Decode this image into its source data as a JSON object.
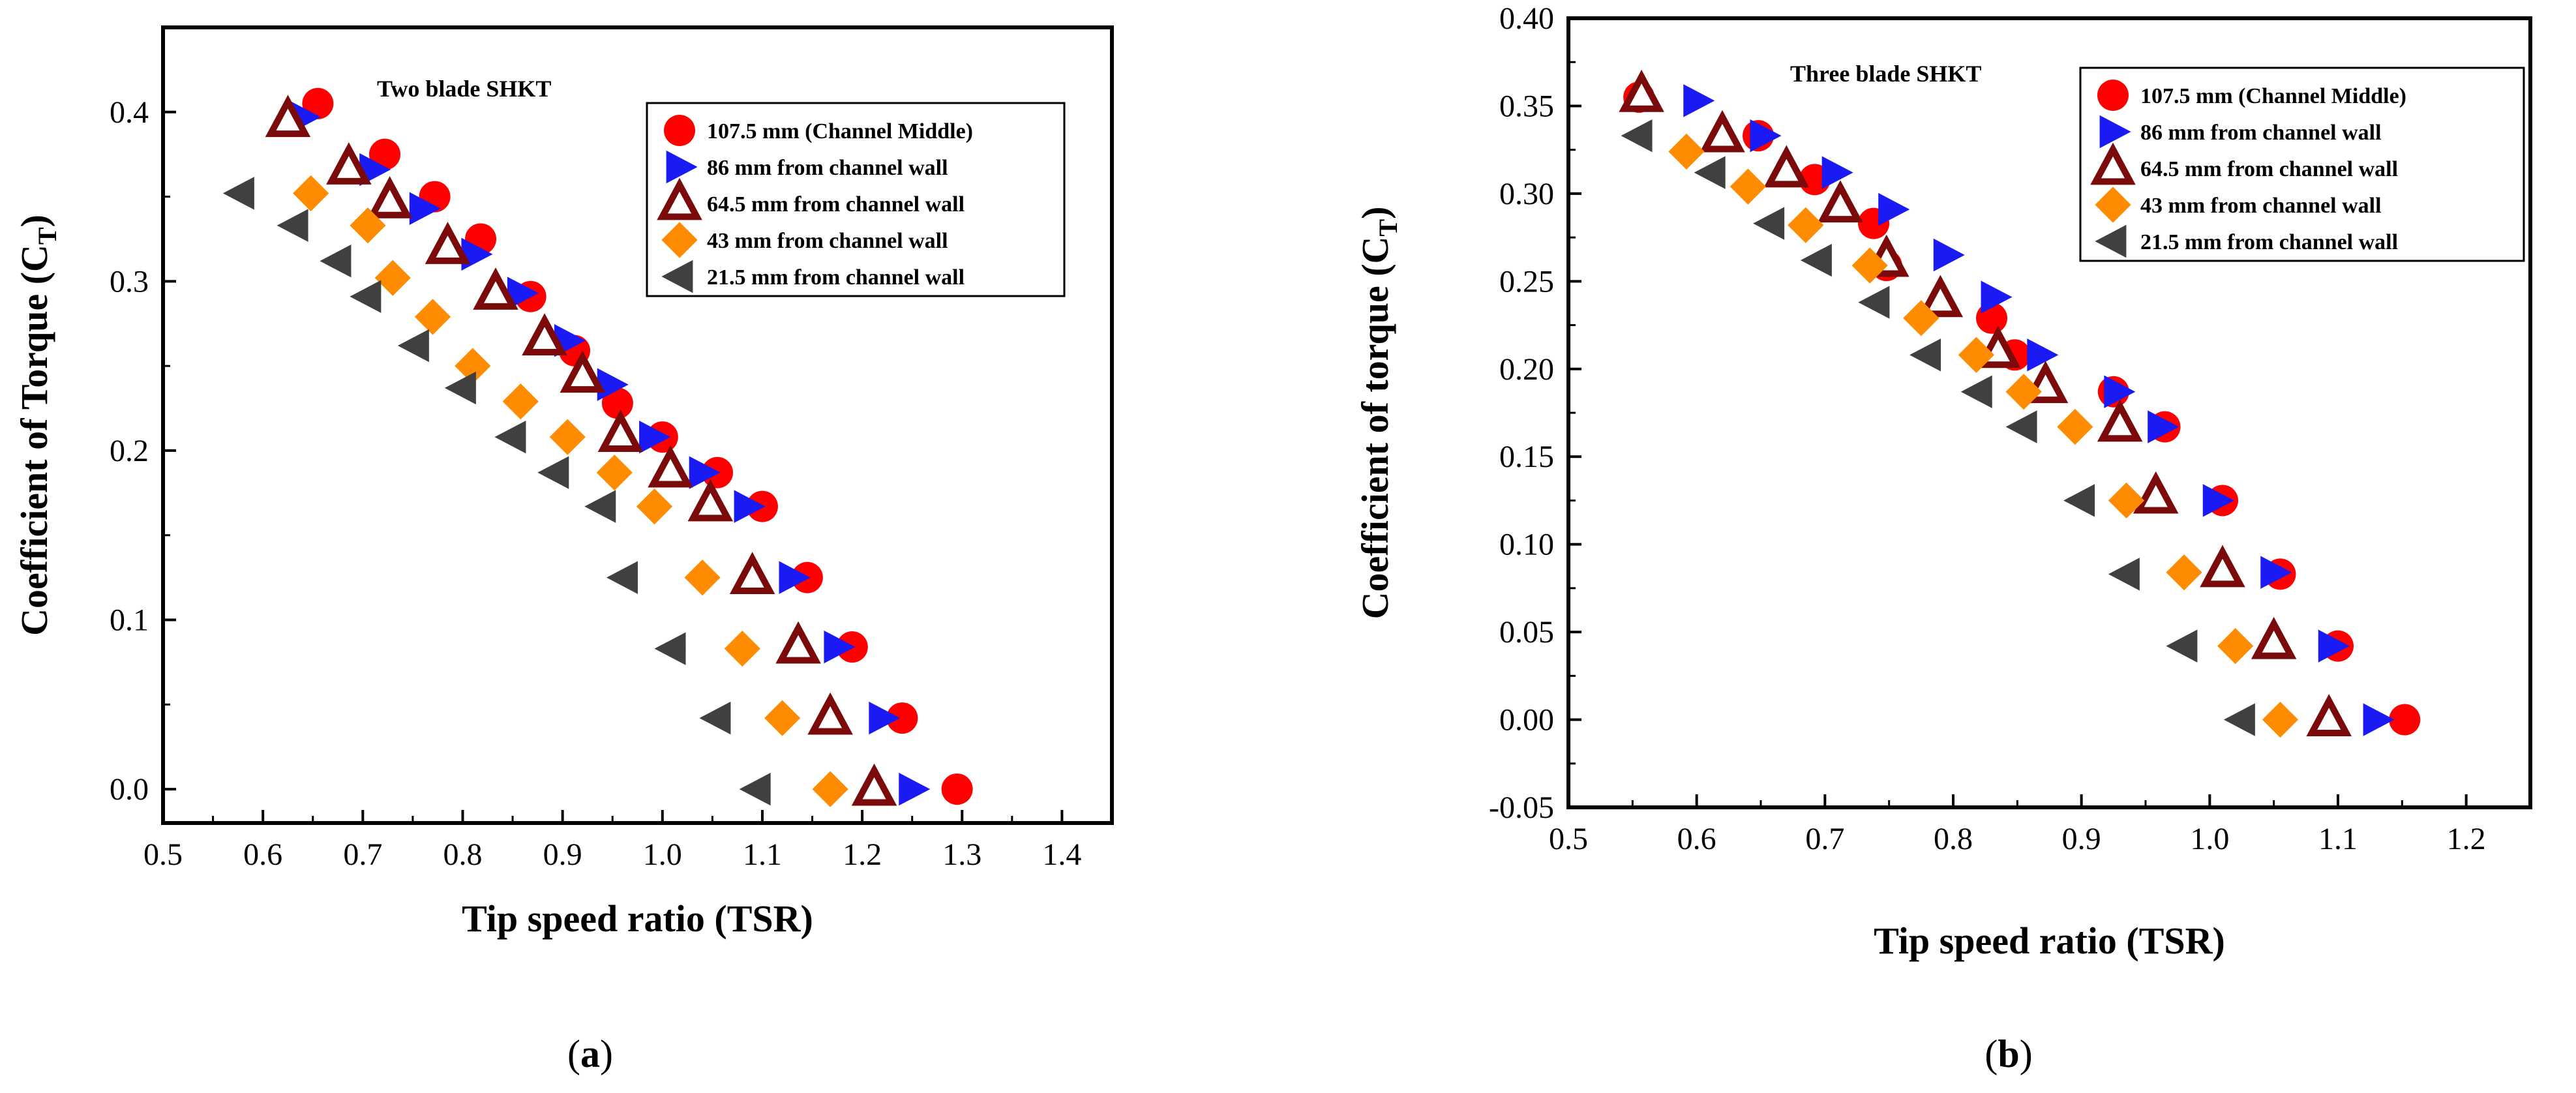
{
  "colors": {
    "m107": "#ff0000",
    "m86": "#1a1af5",
    "m64": "#7b0a0a",
    "m43": "#ff8c00",
    "m21": "#404040"
  },
  "chart_data": [
    {
      "type": "scatter",
      "panel_label": "(a)",
      "panel_letter": "a",
      "inner_title": "Two blade SHKT",
      "xlabel": "Tip speed ratio (TSR)",
      "ylabel": "Coefficient of Torque (C",
      "ylabel_sub": "T",
      "ylabel_close": ")",
      "xlim": [
        0.5,
        1.45
      ],
      "ylim": [
        -0.02,
        0.45
      ],
      "xticks": [
        0.5,
        0.6,
        0.7,
        0.8,
        0.9,
        1.0,
        1.1,
        1.2,
        1.3,
        1.4
      ],
      "xtick_labels": [
        "0.5",
        "0.6",
        "0.7",
        "0.8",
        "0.9",
        "1.0",
        "1.1",
        "1.2",
        "1.3",
        "1.4"
      ],
      "yticks": [
        0.0,
        0.1,
        0.2,
        0.3,
        0.4
      ],
      "ytick_labels": [
        "0.0",
        "0.1",
        "0.2",
        "0.3",
        "0.4"
      ],
      "legend_position": "top-right",
      "series": [
        {
          "name": "107.5 mm (Channel Middle)",
          "marker": "circle",
          "color_key": "m107",
          "x": [
            0.655,
            0.722,
            0.772,
            0.818,
            0.868,
            0.912,
            0.955,
            1.0,
            1.055,
            1.1,
            1.145,
            1.19,
            1.24,
            1.295
          ],
          "y": [
            0.405,
            0.375,
            0.35,
            0.325,
            0.291,
            0.259,
            0.228,
            0.208,
            0.187,
            0.167,
            0.125,
            0.084,
            0.042,
            0.0
          ]
        },
        {
          "name": "86 mm from channel wall",
          "marker": "tri-right",
          "color_key": "m86",
          "x": [
            0.64,
            0.71,
            0.76,
            0.812,
            0.858,
            0.905,
            0.948,
            0.99,
            1.04,
            1.085,
            1.13,
            1.175,
            1.22,
            1.25
          ],
          "y": [
            0.397,
            0.366,
            0.343,
            0.316,
            0.293,
            0.265,
            0.239,
            0.208,
            0.187,
            0.167,
            0.125,
            0.084,
            0.042,
            0.0
          ]
        },
        {
          "name": "64.5 mm from channel wall",
          "marker": "tri-up",
          "color_key": "m64",
          "x": [
            0.625,
            0.686,
            0.727,
            0.785,
            0.833,
            0.882,
            0.92,
            0.958,
            1.008,
            1.048,
            1.09,
            1.136,
            1.168,
            1.212
          ],
          "y": [
            0.395,
            0.367,
            0.347,
            0.32,
            0.293,
            0.266,
            0.244,
            0.209,
            0.188,
            0.168,
            0.125,
            0.084,
            0.042,
            0.0
          ]
        },
        {
          "name": "43 mm from channel wall",
          "marker": "diamond",
          "color_key": "m43",
          "x": [
            0.648,
            0.705,
            0.73,
            0.77,
            0.81,
            0.858,
            0.905,
            0.952,
            0.992,
            1.04,
            1.08,
            1.12,
            1.168
          ],
          "y": [
            0.352,
            0.333,
            0.302,
            0.279,
            0.25,
            0.229,
            0.208,
            0.187,
            0.167,
            0.125,
            0.083,
            0.042,
            0.0
          ]
        },
        {
          "name": "21.5 mm from channel wall",
          "marker": "tri-left",
          "color_key": "m21",
          "x": [
            0.578,
            0.632,
            0.675,
            0.705,
            0.753,
            0.8,
            0.85,
            0.893,
            0.94,
            0.962,
            1.01,
            1.055,
            1.095
          ],
          "y": [
            0.352,
            0.333,
            0.312,
            0.291,
            0.262,
            0.237,
            0.208,
            0.187,
            0.167,
            0.125,
            0.083,
            0.042,
            0.0
          ]
        }
      ]
    },
    {
      "type": "scatter",
      "panel_label": "(b)",
      "panel_letter": "b",
      "inner_title": "Three blade SHKT",
      "xlabel": "Tip speed ratio (TSR)",
      "ylabel": "Coefficient of torque (C",
      "ylabel_sub": "T",
      "ylabel_close": ")",
      "xlim": [
        0.5,
        1.25
      ],
      "ylim": [
        -0.05,
        0.4
      ],
      "xticks": [
        0.5,
        0.6,
        0.7,
        0.8,
        0.9,
        1.0,
        1.1,
        1.2
      ],
      "xtick_labels": [
        "0.5",
        "0.6",
        "0.7",
        "0.8",
        "0.9",
        "1.0",
        "1.1",
        "1.2"
      ],
      "yticks": [
        -0.05,
        0.0,
        0.05,
        0.1,
        0.15,
        0.2,
        0.25,
        0.3,
        0.35,
        0.4
      ],
      "ytick_labels": [
        "-0.05",
        "0.00",
        "0.05",
        "0.10",
        "0.15",
        "0.20",
        "0.25",
        "0.30",
        "0.35",
        "0.40"
      ],
      "legend_position": "top-right",
      "series": [
        {
          "name": "107.5 mm (Channel Middle)",
          "marker": "circle",
          "color_key": "m107",
          "x": [
            0.555,
            0.648,
            0.692,
            0.738,
            0.748,
            0.83,
            0.848,
            0.925,
            0.965,
            1.01,
            1.055,
            1.1,
            1.152
          ],
          "y": [
            0.355,
            0.333,
            0.308,
            0.283,
            0.259,
            0.229,
            0.208,
            0.187,
            0.167,
            0.125,
            0.083,
            0.042,
            0.0
          ]
        },
        {
          "name": "86 mm from channel wall",
          "marker": "tri-right",
          "color_key": "m86",
          "x": [
            0.6,
            0.652,
            0.708,
            0.752,
            0.795,
            0.832,
            0.868,
            0.928,
            0.962,
            1.005,
            1.05,
            1.095,
            1.13
          ],
          "y": [
            0.353,
            0.333,
            0.312,
            0.291,
            0.265,
            0.241,
            0.208,
            0.187,
            0.167,
            0.125,
            0.084,
            0.042,
            0.0
          ]
        },
        {
          "name": "64.5 mm from channel wall",
          "marker": "tri-up",
          "color_key": "m64",
          "x": [
            0.557,
            0.62,
            0.67,
            0.712,
            0.748,
            0.79,
            0.835,
            0.872,
            0.93,
            0.958,
            1.01,
            1.05,
            1.093
          ],
          "y": [
            0.356,
            0.333,
            0.313,
            0.293,
            0.262,
            0.239,
            0.21,
            0.19,
            0.168,
            0.127,
            0.085,
            0.044,
            0.0
          ]
        },
        {
          "name": "43 mm from channel wall",
          "marker": "diamond",
          "color_key": "m43",
          "x": [
            0.592,
            0.64,
            0.685,
            0.735,
            0.775,
            0.818,
            0.855,
            0.895,
            0.935,
            0.98,
            1.02,
            1.055
          ],
          "y": [
            0.324,
            0.304,
            0.282,
            0.259,
            0.229,
            0.208,
            0.187,
            0.167,
            0.125,
            0.084,
            0.042,
            0.0
          ]
        },
        {
          "name": "21.5 mm from channel wall",
          "marker": "tri-left",
          "color_key": "m21",
          "x": [
            0.555,
            0.612,
            0.658,
            0.695,
            0.74,
            0.78,
            0.82,
            0.855,
            0.9,
            0.935,
            0.98,
            1.025
          ],
          "y": [
            0.333,
            0.312,
            0.283,
            0.262,
            0.238,
            0.208,
            0.187,
            0.167,
            0.125,
            0.083,
            0.042,
            0.0
          ]
        }
      ]
    }
  ]
}
